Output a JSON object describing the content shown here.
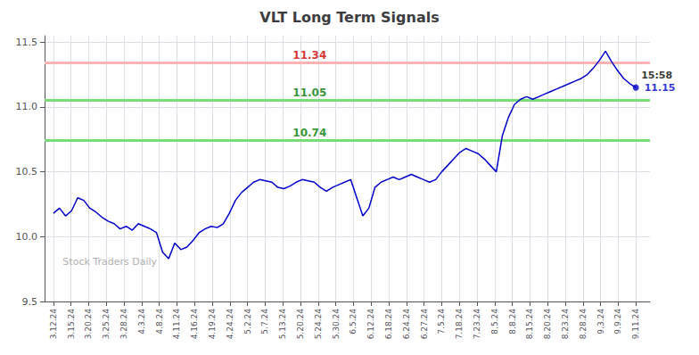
{
  "chart_data": {
    "type": "line",
    "title": "VLT Long Term Signals",
    "color": "#0000cc",
    "x": [
      0,
      0.34375,
      0.6875,
      1.03125,
      1.375,
      1.71875,
      2.0625,
      2.40625,
      2.75,
      3.09375,
      3.4375,
      3.78125,
      4.125,
      4.46875,
      4.8125,
      5.15625,
      5.5,
      5.84375,
      6.1875,
      6.53125,
      6.875,
      7.21875,
      7.5625,
      7.90625,
      8.25,
      8.59375,
      8.9375,
      9.28125,
      9.625,
      9.96875,
      10.3125,
      10.65625,
      11,
      11.34375,
      11.6875,
      12.03125,
      12.375,
      12.71875,
      13.0625,
      13.40625,
      13.75,
      14.09375,
      14.4375,
      14.78125,
      15.125,
      15.46875,
      15.8125,
      16.15625,
      16.5,
      16.84375,
      17.1875,
      17.53125,
      17.875,
      18.21875,
      18.5625,
      18.90625,
      19.25,
      19.59375,
      19.9375,
      20.28125,
      20.625,
      20.96875,
      21.3125,
      21.65625,
      22,
      22.34375,
      22.6875,
      23.03125,
      23.375,
      23.71875,
      24.0625,
      24.40625,
      24.75,
      25.09375,
      25.4375,
      25.78125,
      26.125,
      26.46875,
      26.8125,
      27.15625,
      27.5,
      27.84375,
      28.1875,
      28.53125,
      28.875,
      29.21875,
      29.5625,
      29.90625,
      30.25,
      30.59375,
      30.9375,
      31.28125,
      31.625,
      31.96875,
      32.3125,
      32.65625,
      33
    ],
    "values": [
      10.18,
      10.22,
      10.16,
      10.2,
      10.3,
      10.28,
      10.22,
      10.19,
      10.15,
      10.12,
      10.1,
      10.06,
      10.08,
      10.05,
      10.1,
      10.08,
      10.06,
      10.03,
      9.88,
      9.83,
      9.95,
      9.9,
      9.92,
      9.97,
      10.03,
      10.06,
      10.08,
      10.07,
      10.1,
      10.18,
      10.28,
      10.34,
      10.38,
      10.42,
      10.44,
      10.43,
      10.42,
      10.38,
      10.37,
      10.39,
      10.42,
      10.44,
      10.43,
      10.42,
      10.38,
      10.35,
      10.38,
      10.4,
      10.42,
      10.44,
      10.3,
      10.16,
      10.22,
      10.38,
      10.42,
      10.44,
      10.46,
      10.44,
      10.46,
      10.48,
      10.46,
      10.44,
      10.42,
      10.44,
      10.5,
      10.55,
      10.6,
      10.65,
      10.68,
      10.66,
      10.64,
      10.6,
      10.55,
      10.5,
      10.78,
      10.92,
      11.02,
      11.06,
      11.08,
      11.06,
      11.08,
      11.1,
      11.12,
      11.14,
      11.16,
      11.18,
      11.2,
      11.22,
      11.25,
      11.3,
      11.36,
      11.43,
      11.35,
      11.28,
      11.22,
      11.18,
      11.15
    ],
    "xlim": [
      -0.5,
      33.8
    ],
    "xticks": [
      {
        "value": 0,
        "label": "3.12.24"
      },
      {
        "value": 1,
        "label": "3.15.24"
      },
      {
        "value": 2,
        "label": "3.20.24"
      },
      {
        "value": 3,
        "label": "3.25.24"
      },
      {
        "value": 4,
        "label": "3.28.24"
      },
      {
        "value": 5,
        "label": "4.3.24"
      },
      {
        "value": 6,
        "label": "4.8.24"
      },
      {
        "value": 7,
        "label": "4.11.24"
      },
      {
        "value": 8,
        "label": "4.16.24"
      },
      {
        "value": 9,
        "label": "4.19.24"
      },
      {
        "value": 10,
        "label": "4.24.24"
      },
      {
        "value": 11,
        "label": "5.2.24"
      },
      {
        "value": 12,
        "label": "5.7.24"
      },
      {
        "value": 13,
        "label": "5.13.24"
      },
      {
        "value": 14,
        "label": "5.20.24"
      },
      {
        "value": 15,
        "label": "5.24.24"
      },
      {
        "value": 16,
        "label": "5.30.24"
      },
      {
        "value": 17,
        "label": "6.5.24"
      },
      {
        "value": 18,
        "label": "6.12.24"
      },
      {
        "value": 19,
        "label": "6.18.24"
      },
      {
        "value": 20,
        "label": "6.24.24"
      },
      {
        "value": 21,
        "label": "6.27.24"
      },
      {
        "value": 22,
        "label": "7.5.24"
      },
      {
        "value": 23,
        "label": "7.18.24"
      },
      {
        "value": 24,
        "label": "7.23.24"
      },
      {
        "value": 25,
        "label": "8.5.24"
      },
      {
        "value": 26,
        "label": "8.8.24"
      },
      {
        "value": 27,
        "label": "8.15.24"
      },
      {
        "value": 28,
        "label": "8.20.24"
      },
      {
        "value": 29,
        "label": "8.23.24"
      },
      {
        "value": 30,
        "label": "8.28.24"
      },
      {
        "value": 31,
        "label": "9.3.24"
      },
      {
        "value": 32,
        "label": "9.9.24"
      },
      {
        "value": 33,
        "label": "9.11.24"
      }
    ],
    "ylim": [
      9.5,
      11.55
    ],
    "yticks": [
      9.5,
      {
        "value": 10.0,
        "label": "10.0"
      },
      10.5,
      {
        "value": 11.0,
        "label": "11.0"
      },
      11.5
    ],
    "grid": true,
    "hlines": [
      {
        "y": 11.34,
        "color": "#ffb3b3",
        "label": "11.34",
        "label_color": "#cc0000"
      },
      {
        "y": 11.05,
        "color": "#77dd77",
        "label": "11.05",
        "label_color": "#007700"
      },
      {
        "y": 10.74,
        "color": "#77dd77",
        "label": "10.74",
        "label_color": "#007700"
      }
    ],
    "last_point": {
      "time": "15:58",
      "price": "11.15",
      "color": "#0000cc",
      "time_color": "#000000"
    },
    "watermark": "Stock Traders Daily",
    "watermark_color": "#b0b0b0"
  }
}
